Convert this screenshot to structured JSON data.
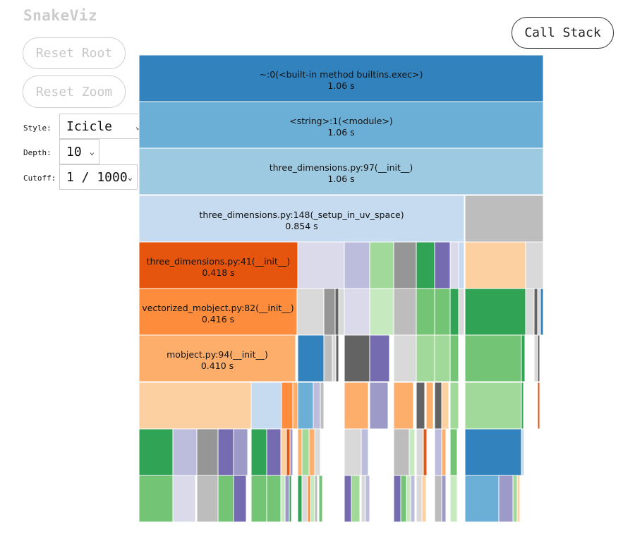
{
  "app": {
    "title": "SnakeViz"
  },
  "buttons": {
    "reset_root": "Reset Root",
    "reset_zoom": "Reset Zoom",
    "call_stack": "Call Stack"
  },
  "controls": {
    "style": {
      "label": "Style:",
      "value": "Icicle"
    },
    "depth": {
      "label": "Depth:",
      "value": "10"
    },
    "cutoff": {
      "label": "Cutoff:",
      "value": "1 / 1000"
    }
  },
  "icons": {
    "dropdown": "chevron-down-icon"
  },
  "flame": {
    "colors": {
      "blue": "#3182bd",
      "blue_mid": "#6baed6",
      "blue_light": "#9ecae1",
      "blue_pale": "#c6dbef",
      "orange": "#e6550d",
      "orange_mid": "#fd8d3c",
      "orange_light": "#fdae6b",
      "orange_pale": "#fdd0a2",
      "green": "#31a354",
      "green_mid": "#74c476",
      "green_light": "#a1d99b",
      "green_pale": "#c7e9c0",
      "purple": "#756bb1",
      "purple_mid": "#9e9ac8",
      "purple_light": "#bcbddc",
      "purple_pale": "#dadaeb",
      "gray": "#636363",
      "gray_mid": "#969696",
      "gray_light": "#bdbdbd",
      "gray_pale": "#d9d9d9"
    },
    "labeled_nodes": [
      {
        "name": "~:0(<built-in method builtins.exec>)",
        "time": "1.06 s"
      },
      {
        "name": "<string>:1(<module>)",
        "time": "1.06 s"
      },
      {
        "name": "three_dimensions.py:97(__init__)",
        "time": "1.06 s"
      },
      {
        "name": "three_dimensions.py:148(_setup_in_uv_space)",
        "time": "0.854 s"
      },
      {
        "name": "three_dimensions.py:41(__init__)",
        "time": "0.418 s"
      },
      {
        "name": "vectorized_mobject.py:82(__init__)",
        "time": "0.416 s"
      },
      {
        "name": "mobject.py:94(__init__)",
        "time": "0.410 s"
      }
    ]
  }
}
